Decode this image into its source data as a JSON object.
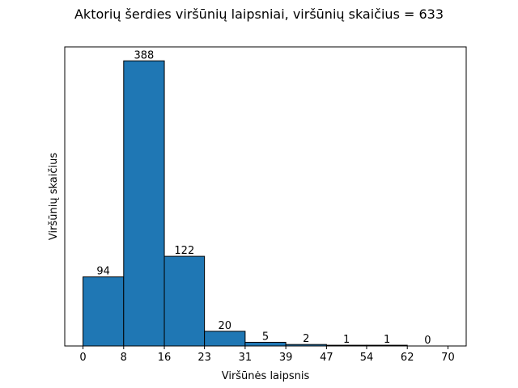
{
  "chart_data": {
    "type": "bar",
    "title": "Aktorių šerdies viršūnių laipsniai, viršūnių skaičius =  633",
    "xlabel": "Viršūnės laipsnis",
    "ylabel": "Viršūnių skaičius",
    "bin_edges": [
      0,
      7.8,
      15.6,
      23.3,
      31.1,
      38.9,
      46.7,
      54.4,
      62.2,
      70
    ],
    "xticks": [
      0,
      8,
      16,
      23,
      31,
      39,
      47,
      54,
      62,
      70
    ],
    "values": [
      94,
      388,
      122,
      20,
      5,
      2,
      1,
      1,
      0
    ],
    "bar_color": "#1f77b4",
    "edge_color": "#000000",
    "ylim": [
      0,
      407
    ],
    "grid": false,
    "yticks_visible": false
  }
}
